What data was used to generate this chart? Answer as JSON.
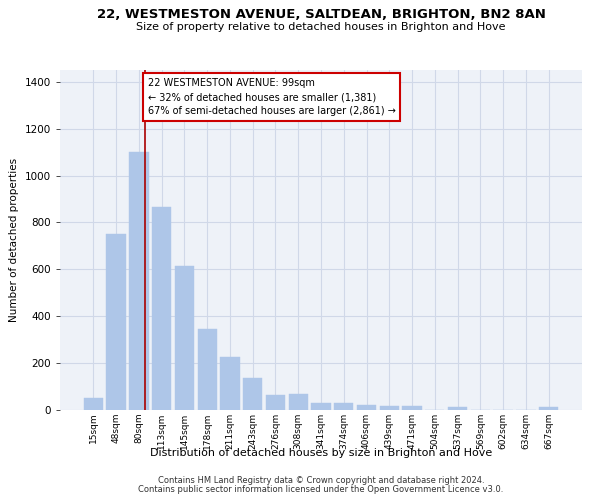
{
  "title": "22, WESTMESTON AVENUE, SALTDEAN, BRIGHTON, BN2 8AN",
  "subtitle": "Size of property relative to detached houses in Brighton and Hove",
  "xlabel": "Distribution of detached houses by size in Brighton and Hove",
  "ylabel": "Number of detached properties",
  "footer1": "Contains HM Land Registry data © Crown copyright and database right 2024.",
  "footer2": "Contains public sector information licensed under the Open Government Licence v3.0.",
  "categories": [
    "15sqm",
    "48sqm",
    "80sqm",
    "113sqm",
    "145sqm",
    "178sqm",
    "211sqm",
    "243sqm",
    "276sqm",
    "308sqm",
    "341sqm",
    "374sqm",
    "406sqm",
    "439sqm",
    "471sqm",
    "504sqm",
    "537sqm",
    "569sqm",
    "602sqm",
    "634sqm",
    "667sqm"
  ],
  "values": [
    50,
    750,
    1100,
    865,
    615,
    345,
    225,
    135,
    65,
    70,
    30,
    30,
    22,
    15,
    15,
    0,
    12,
    0,
    0,
    0,
    12
  ],
  "bar_color": "#aec6e8",
  "bar_edge_color": "#aec6e8",
  "grid_color": "#d0d8e8",
  "background_color": "#eef2f8",
  "vline_color": "#aa0000",
  "annotation_text": "22 WESTMESTON AVENUE: 99sqm\n← 32% of detached houses are smaller (1,381)\n67% of semi-detached houses are larger (2,861) →",
  "annotation_box_color": "#ffffff",
  "annotation_border_color": "#cc0000",
  "ylim": [
    0,
    1450
  ],
  "yticks": [
    0,
    200,
    400,
    600,
    800,
    1000,
    1200,
    1400
  ]
}
